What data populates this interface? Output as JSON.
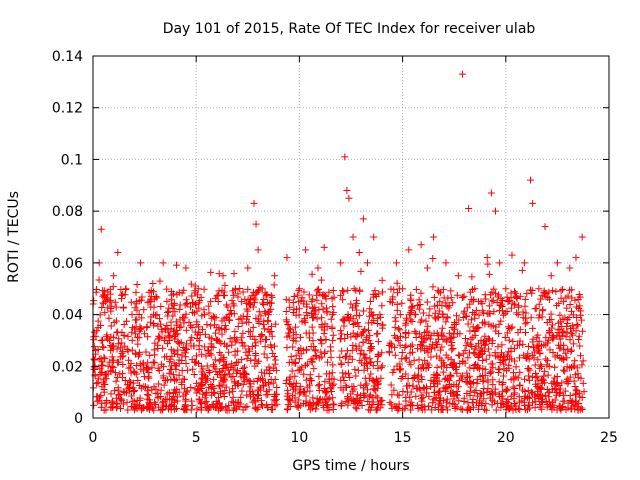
{
  "chart_data": {
    "type": "scatter",
    "title": "Day 101 of 2015, Rate Of TEC Index for receiver ulab",
    "xlabel": "GPS time / hours",
    "ylabel": "ROTI / TECUs",
    "xlim": [
      0,
      25
    ],
    "ylim": [
      0,
      0.14
    ],
    "xticks": [
      0,
      5,
      10,
      15,
      20,
      25
    ],
    "yticks": [
      0,
      0.02,
      0.04,
      0.06,
      0.08,
      0.1,
      0.12,
      0.14
    ],
    "xtick_labels": [
      "0",
      "5",
      "10",
      "15",
      "20",
      "25"
    ],
    "ytick_labels": [
      "0",
      "0.02",
      "0.04",
      "0.06",
      "0.08",
      "0.1",
      "0.12",
      "0.14"
    ],
    "grid": true,
    "legend": "none",
    "marker": "plus",
    "color": "#ff0000",
    "series": [
      {
        "x": [
          0.1,
          0.3,
          0.4,
          0.6,
          0.8,
          1.0,
          1.2,
          1.4,
          1.6,
          1.9,
          2.1,
          2.3,
          2.6,
          2.9,
          3.1,
          3.4,
          3.7,
          3.9,
          4.2,
          4.5,
          4.8,
          5.1,
          5.4,
          5.7,
          6.0,
          6.3,
          6.6,
          6.9,
          7.2,
          7.5,
          7.8,
          7.9,
          8.0,
          8.2,
          8.5,
          8.8,
          9.4,
          9.7,
          10.0,
          10.3,
          10.6,
          10.9,
          11.2,
          11.6,
          12.0,
          12.2,
          12.3,
          12.4,
          12.6,
          12.9,
          13.1,
          13.3,
          13.6,
          13.9,
          14.4,
          14.7,
          15.0,
          15.3,
          15.6,
          15.9,
          16.2,
          16.5,
          16.8,
          17.1,
          17.4,
          17.7,
          17.9,
          18.2,
          18.5,
          18.8,
          19.1,
          19.3,
          19.5,
          19.7,
          20.0,
          20.3,
          20.6,
          20.9,
          21.2,
          21.3,
          21.6,
          21.9,
          22.2,
          22.5,
          22.8,
          23.1,
          23.4,
          23.7
        ],
        "y": [
          0.02,
          0.06,
          0.073,
          0.045,
          0.03,
          0.055,
          0.064,
          0.025,
          0.05,
          0.03,
          0.045,
          0.06,
          0.035,
          0.052,
          0.04,
          0.06,
          0.03,
          0.048,
          0.042,
          0.058,
          0.035,
          0.05,
          0.04,
          0.045,
          0.03,
          0.055,
          0.04,
          0.05,
          0.045,
          0.058,
          0.083,
          0.075,
          0.065,
          0.05,
          0.04,
          0.055,
          0.062,
          0.03,
          0.05,
          0.065,
          0.045,
          0.058,
          0.066,
          0.04,
          0.06,
          0.101,
          0.088,
          0.085,
          0.07,
          0.064,
          0.077,
          0.06,
          0.07,
          0.04,
          0.045,
          0.06,
          0.05,
          0.065,
          0.04,
          0.067,
          0.058,
          0.07,
          0.045,
          0.06,
          0.035,
          0.055,
          0.133,
          0.081,
          0.05,
          0.045,
          0.062,
          0.087,
          0.08,
          0.06,
          0.05,
          0.063,
          0.04,
          0.06,
          0.092,
          0.083,
          0.05,
          0.074,
          0.055,
          0.06,
          0.045,
          0.058,
          0.062,
          0.07
        ]
      }
    ],
    "background_density": {
      "x_min": 0,
      "x_max": 23.8,
      "y_floor": 0.003,
      "y_typical_max": 0.05,
      "gaps_hours": [
        [
          8.95,
          9.35
        ],
        [
          11.7,
          11.95
        ],
        [
          14.05,
          14.35
        ]
      ]
    }
  }
}
